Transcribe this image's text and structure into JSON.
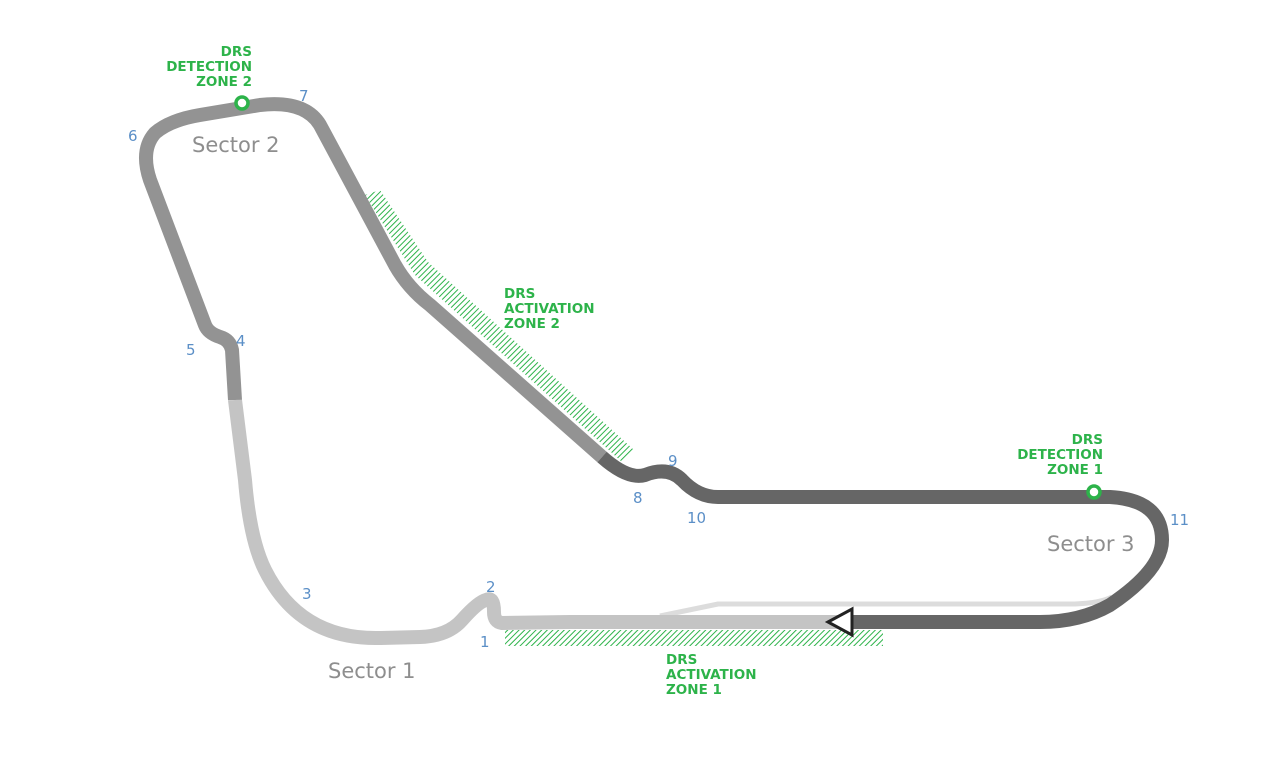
{
  "colors": {
    "sector1": "#c4c4c4",
    "sector2": "#939393",
    "sector3": "#666666",
    "drs": "#2db34a",
    "corner_numbers": "#5b8fc7",
    "old_circuit": "#dcdcdc"
  },
  "corners": [
    "1",
    "2",
    "3",
    "4",
    "5",
    "6",
    "7",
    "8",
    "9",
    "10",
    "11"
  ],
  "sectors": [
    "Sector 1",
    "Sector 2",
    "Sector 3"
  ],
  "drs_detection_zone_2": [
    "DRS",
    "DETECTION",
    "ZONE 2"
  ],
  "drs_detection_zone_1": [
    "DRS",
    "DETECTION",
    "ZONE 1"
  ],
  "drs_activation_zone_2": [
    "DRS",
    "ACTIVATION",
    "ZONE 2"
  ],
  "drs_activation_zone_1": [
    "DRS",
    "ACTIVATION",
    "ZONE 1"
  ],
  "icons": {
    "start_finish": "triangle-left-icon",
    "detection_point": "circle-marker-icon"
  }
}
